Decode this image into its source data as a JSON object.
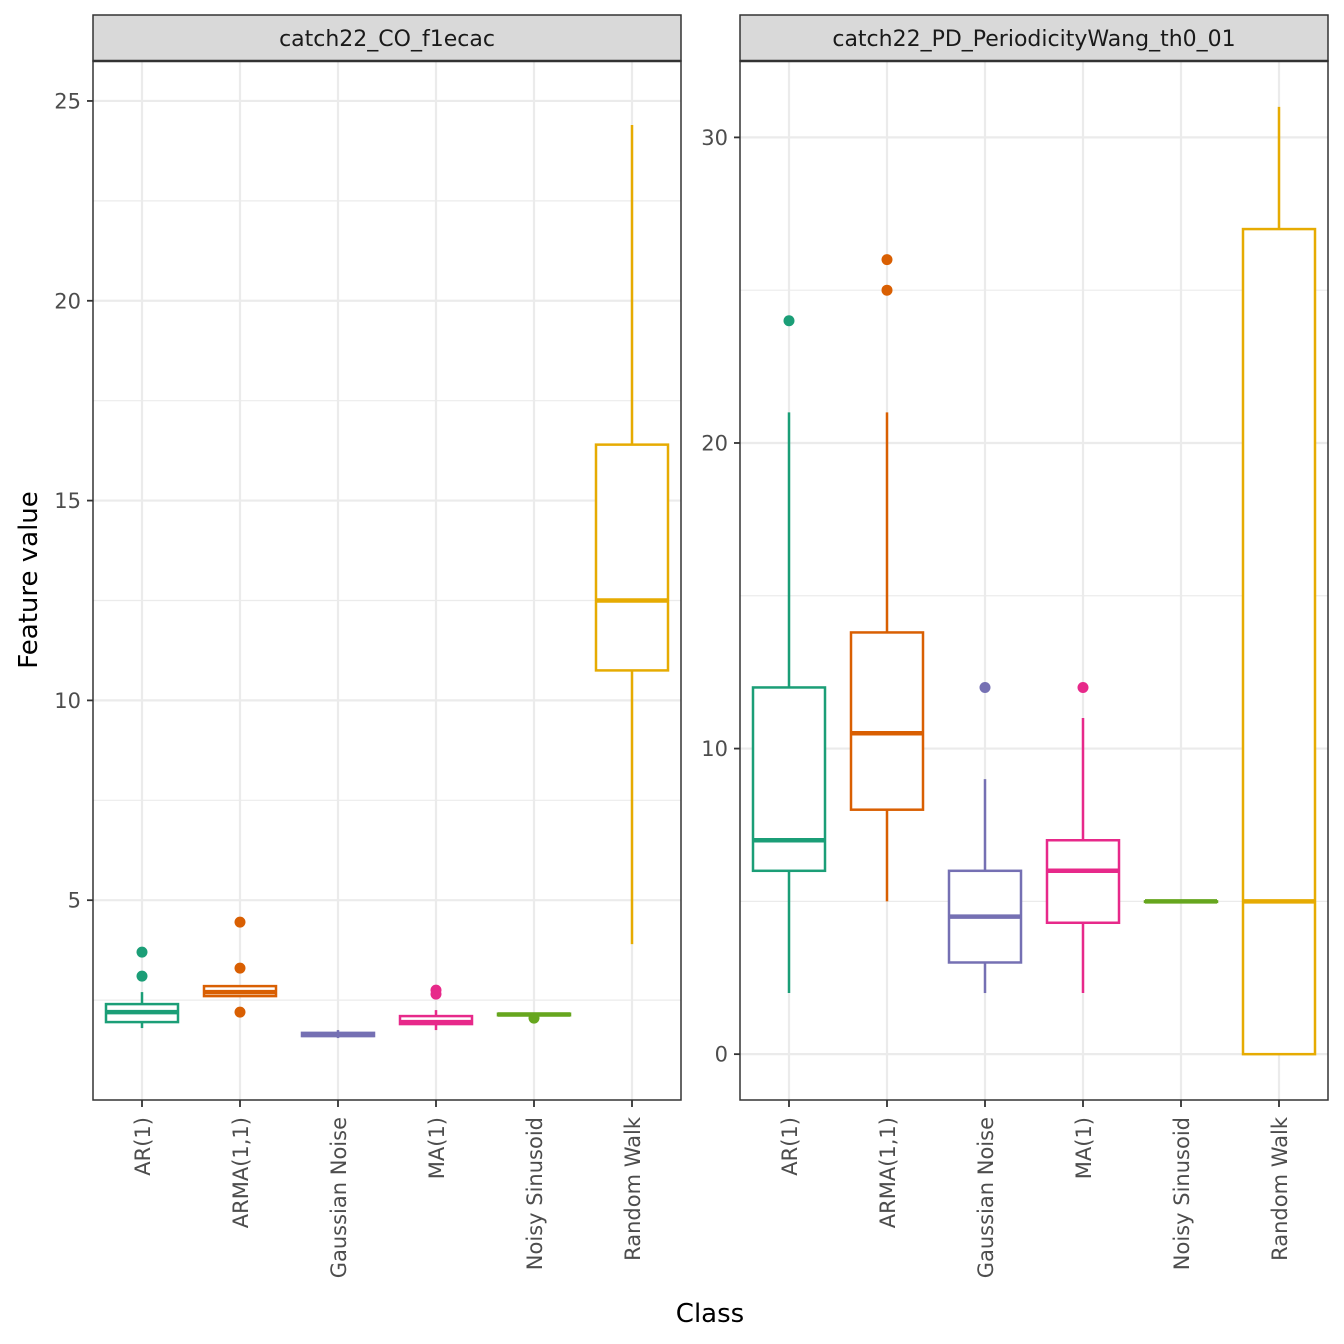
{
  "figure": {
    "xlabel": "Class",
    "ylabel": "Feature value"
  },
  "chart_data": [
    {
      "type": "box",
      "title": "catch22_CO_f1ecac",
      "xlabel": "Class",
      "ylabel": "Feature value",
      "categories": [
        "AR(1)",
        "ARMA(1,1)",
        "Gaussian Noise",
        "MA(1)",
        "Noisy Sinusoid",
        "Random Walk"
      ],
      "ylim": [
        0,
        26
      ],
      "yticks": [
        5,
        10,
        15,
        20,
        25
      ],
      "grid": true,
      "boxes": [
        {
          "category": "AR(1)",
          "color": "#1b9e77",
          "min": 1.8,
          "q1": 1.95,
          "median": 2.2,
          "q3": 2.4,
          "max": 2.7,
          "outliers": [
            3.7,
            3.1
          ]
        },
        {
          "category": "ARMA(1,1)",
          "color": "#d95f02",
          "min": 2.6,
          "q1": 2.6,
          "median": 2.7,
          "q3": 2.85,
          "max": 2.85,
          "outliers": [
            4.45,
            3.3,
            2.2
          ]
        },
        {
          "category": "Gaussian Noise",
          "color": "#7570b3",
          "min": 1.55,
          "q1": 1.6,
          "median": 1.63,
          "q3": 1.68,
          "max": 1.75,
          "outliers": []
        },
        {
          "category": "MA(1)",
          "color": "#e7298a",
          "min": 1.75,
          "q1": 1.9,
          "median": 1.95,
          "q3": 2.1,
          "max": 2.25,
          "outliers": [
            2.75,
            2.65
          ]
        },
        {
          "category": "Noisy Sinusoid",
          "color": "#66a61e",
          "min": 2.1,
          "q1": 2.12,
          "median": 2.14,
          "q3": 2.16,
          "max": 2.16,
          "outliers": [
            2.05
          ]
        },
        {
          "category": "Random Walk",
          "color": "#e6ab02",
          "min": 3.9,
          "q1": 10.75,
          "median": 12.5,
          "q3": 16.4,
          "max": 24.4,
          "outliers": []
        }
      ]
    },
    {
      "type": "box",
      "title": "catch22_PD_PeriodicityWang_th0_01",
      "xlabel": "Class",
      "ylabel": "Feature value",
      "categories": [
        "AR(1)",
        "ARMA(1,1)",
        "Gaussian Noise",
        "MA(1)",
        "Noisy Sinusoid",
        "Random Walk"
      ],
      "ylim": [
        -1.5,
        32.5
      ],
      "yticks": [
        0,
        10,
        20,
        30
      ],
      "grid": true,
      "boxes": [
        {
          "category": "AR(1)",
          "color": "#1b9e77",
          "min": 2,
          "q1": 6,
          "median": 7,
          "q3": 12,
          "max": 21,
          "outliers": [
            24
          ]
        },
        {
          "category": "ARMA(1,1)",
          "color": "#d95f02",
          "min": 5,
          "q1": 8,
          "median": 10.5,
          "q3": 13.8,
          "max": 21,
          "outliers": [
            26,
            25
          ]
        },
        {
          "category": "Gaussian Noise",
          "color": "#7570b3",
          "min": 2,
          "q1": 3,
          "median": 4.5,
          "q3": 6,
          "max": 9,
          "outliers": [
            12
          ]
        },
        {
          "category": "MA(1)",
          "color": "#e7298a",
          "min": 2,
          "q1": 4.3,
          "median": 6,
          "q3": 7,
          "max": 11,
          "outliers": [
            12
          ]
        },
        {
          "category": "Noisy Sinusoid",
          "color": "#66a61e",
          "min": 5,
          "q1": 5,
          "median": 5,
          "q3": 5,
          "max": 5,
          "outliers": []
        },
        {
          "category": "Random Walk",
          "color": "#e6ab02",
          "min": 0,
          "q1": 0,
          "median": 5,
          "q3": 27,
          "max": 31,
          "outliers": []
        }
      ]
    }
  ]
}
